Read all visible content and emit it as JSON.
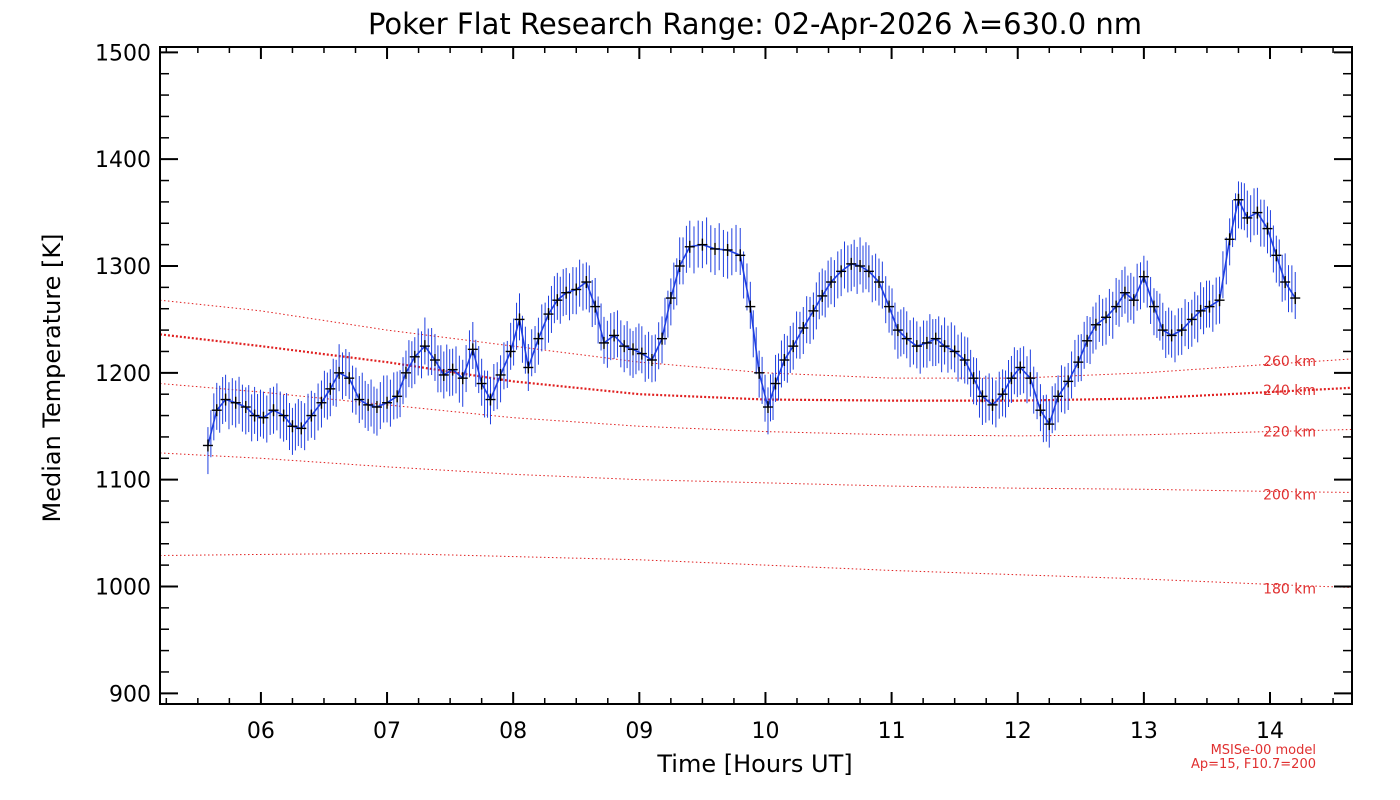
{
  "chart_data": {
    "type": "line",
    "title": "Poker Flat Research Range: 02-Apr-2026 λ=630.0 nm",
    "xlabel": "Time [Hours UT]",
    "ylabel": "Median Temperature [K]",
    "xlim": [
      5.2,
      14.65
    ],
    "ylim": [
      890,
      1505
    ],
    "x_ticks": [
      {
        "value": 6,
        "label": "06"
      },
      {
        "value": 7,
        "label": "07"
      },
      {
        "value": 8,
        "label": "08"
      },
      {
        "value": 9,
        "label": "09"
      },
      {
        "value": 10,
        "label": "10"
      },
      {
        "value": 11,
        "label": "11"
      },
      {
        "value": 12,
        "label": "12"
      },
      {
        "value": 13,
        "label": "13"
      },
      {
        "value": 14,
        "label": "14"
      }
    ],
    "y_ticks": [
      {
        "value": 900,
        "label": "900"
      },
      {
        "value": 1000,
        "label": "1000"
      },
      {
        "value": 1100,
        "label": "1100"
      },
      {
        "value": 1200,
        "label": "1200"
      },
      {
        "value": 1300,
        "label": "1300"
      },
      {
        "value": 1400,
        "label": "1400"
      },
      {
        "value": 1500,
        "label": "1500"
      }
    ],
    "series": [
      {
        "color": "#1f3fe0",
        "error_bar": 22,
        "x": [
          5.58,
          5.65,
          5.72,
          5.8,
          5.88,
          5.95,
          6.02,
          6.1,
          6.18,
          6.25,
          6.32,
          6.4,
          6.48,
          6.55,
          6.62,
          6.7,
          6.78,
          6.85,
          6.92,
          7.0,
          7.08,
          7.15,
          7.22,
          7.3,
          7.38,
          7.45,
          7.52,
          7.6,
          7.68,
          7.75,
          7.82,
          7.9,
          7.98,
          8.05,
          8.12,
          8.2,
          8.28,
          8.35,
          8.42,
          8.5,
          8.58,
          8.65,
          8.72,
          8.8,
          8.88,
          8.95,
          9.02,
          9.1,
          9.18,
          9.25,
          9.32,
          9.4,
          9.5,
          9.6,
          9.7,
          9.8,
          9.88,
          9.95,
          10.02,
          10.08,
          10.15,
          10.22,
          10.3,
          10.38,
          10.45,
          10.52,
          10.6,
          10.68,
          10.75,
          10.82,
          10.9,
          10.98,
          11.05,
          11.12,
          11.2,
          11.28,
          11.35,
          11.42,
          11.5,
          11.58,
          11.65,
          11.72,
          11.8,
          11.88,
          11.95,
          12.02,
          12.1,
          12.18,
          12.25,
          12.32,
          12.4,
          12.48,
          12.55,
          12.62,
          12.7,
          12.78,
          12.85,
          12.92,
          13.0,
          13.08,
          13.15,
          13.22,
          13.3,
          13.38,
          13.45,
          13.52,
          13.6,
          13.68,
          13.75,
          13.82,
          13.9,
          13.98,
          14.05,
          14.12,
          14.2
        ],
        "y": [
          1132,
          1165,
          1175,
          1172,
          1168,
          1160,
          1158,
          1165,
          1160,
          1150,
          1148,
          1160,
          1172,
          1185,
          1200,
          1195,
          1175,
          1170,
          1168,
          1172,
          1178,
          1200,
          1215,
          1225,
          1212,
          1198,
          1203,
          1195,
          1222,
          1190,
          1175,
          1198,
          1220,
          1250,
          1205,
          1232,
          1255,
          1268,
          1275,
          1278,
          1285,
          1262,
          1228,
          1235,
          1225,
          1222,
          1218,
          1212,
          1232,
          1270,
          1300,
          1318,
          1320,
          1316,
          1315,
          1310,
          1262,
          1200,
          1168,
          1190,
          1212,
          1225,
          1242,
          1258,
          1272,
          1285,
          1295,
          1302,
          1300,
          1295,
          1285,
          1262,
          1240,
          1232,
          1225,
          1228,
          1232,
          1225,
          1220,
          1212,
          1195,
          1178,
          1170,
          1180,
          1195,
          1205,
          1195,
          1165,
          1152,
          1178,
          1192,
          1210,
          1230,
          1245,
          1252,
          1262,
          1275,
          1268,
          1290,
          1262,
          1240,
          1235,
          1240,
          1250,
          1258,
          1262,
          1268,
          1325,
          1362,
          1345,
          1350,
          1335,
          1310,
          1285,
          1270
        ]
      }
    ],
    "model_curves": [
      {
        "label": "260 km",
        "x": [
          5.2,
          6,
          7,
          8,
          9,
          10,
          11,
          12,
          13,
          14,
          14.65
        ],
        "y": [
          1268,
          1258,
          1240,
          1225,
          1210,
          1200,
          1195,
          1195,
          1200,
          1208,
          1213
        ]
      },
      {
        "label": "240 km",
        "x": [
          5.2,
          6,
          7,
          8,
          9,
          10,
          11,
          12,
          13,
          14,
          14.65
        ],
        "y": [
          1236,
          1225,
          1210,
          1192,
          1180,
          1175,
          1174,
          1174,
          1176,
          1182,
          1186
        ],
        "emphasis": true
      },
      {
        "label": "220 km",
        "x": [
          5.2,
          6,
          7,
          8,
          9,
          10,
          11,
          12,
          13,
          14,
          14.65
        ],
        "y": [
          1190,
          1182,
          1170,
          1158,
          1150,
          1145,
          1142,
          1141,
          1142,
          1145,
          1147
        ]
      },
      {
        "label": "200 km",
        "x": [
          5.2,
          6,
          7,
          8,
          9,
          10,
          11,
          12,
          13,
          14,
          14.65
        ],
        "y": [
          1125,
          1120,
          1112,
          1105,
          1100,
          1097,
          1094,
          1092,
          1091,
          1089,
          1088
        ]
      },
      {
        "label": "180 km",
        "x": [
          5.2,
          6,
          7,
          8,
          9,
          10,
          11,
          12,
          13,
          14,
          14.65
        ],
        "y": [
          1029,
          1030,
          1031,
          1028,
          1025,
          1020,
          1015,
          1011,
          1007,
          1002,
          999
        ]
      }
    ],
    "model_label_positions": [
      {
        "label": "260 km",
        "y": 1211
      },
      {
        "label": "240 km",
        "y": 1184
      },
      {
        "label": "220 km",
        "y": 1145
      },
      {
        "label": "200 km",
        "y": 1086
      },
      {
        "label": "180 km",
        "y": 998
      }
    ],
    "note_line1": "MSISe-00 model",
    "note_line2": "Ap=15, F10.7=200",
    "colors": {
      "data": "#1f3fe0",
      "marker": "#000000",
      "model": "#e02020",
      "model_label": "#e03030"
    }
  }
}
